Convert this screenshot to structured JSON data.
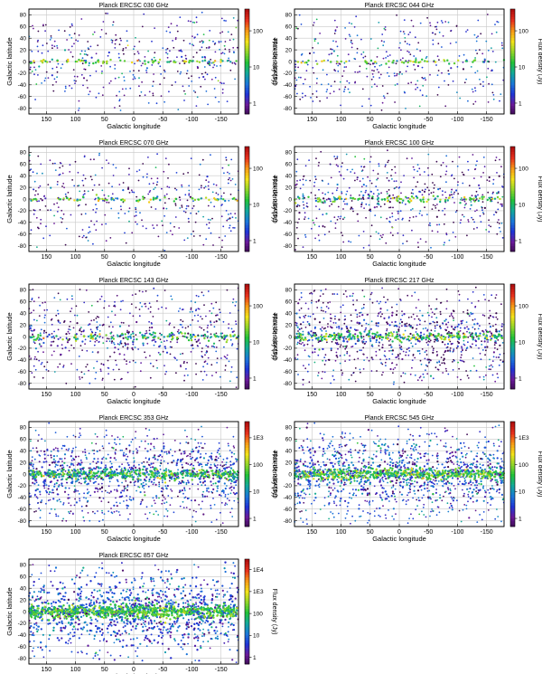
{
  "figure": {
    "xlabel": "Galactic longitude",
    "ylabel": "Galactic latitude",
    "colorbar_label": "Flux density (Jy)",
    "x_ticks": [
      150,
      100,
      50,
      0,
      -50,
      -100,
      -150
    ],
    "x_tick_labels": [
      "150",
      "100",
      "50",
      "0",
      "-50",
      "-100",
      "-150"
    ],
    "y_ticks": [
      80,
      60,
      40,
      20,
      0,
      -20,
      -40,
      -60,
      -80
    ],
    "y_tick_labels": [
      "80",
      "60",
      "40",
      "20",
      "0",
      "-20",
      "-40",
      "-60",
      "-80"
    ],
    "colors": [
      "#3a0a4e",
      "#6a1a9a",
      "#2035d6",
      "#1a78d8",
      "#12a89a",
      "#22c23a",
      "#8fd62a",
      "#f2e21a",
      "#f79a16",
      "#e8301c",
      "#b01010"
    ]
  },
  "chart_data": [
    {
      "type": "scatter",
      "title": "Planck ERCSC 030 GHz",
      "xlim": [
        180,
        -180
      ],
      "ylim": [
        -90,
        90
      ],
      "colorbar": {
        "scale": "log",
        "range": [
          0.5,
          400
        ],
        "ticks": [
          1,
          10,
          100
        ],
        "tick_labels": [
          "1",
          "10",
          "100"
        ]
      },
      "sources": {
        "count_estimate": 705,
        "density": 0.06,
        "plane_band": 0.7,
        "structure": "sparse",
        "flux_median": 1.5,
        "plane_flux": 20
      }
    },
    {
      "type": "scatter",
      "title": "Planck ERCSC 044 GHz",
      "xlim": [
        180,
        -180
      ],
      "ylim": [
        -90,
        90
      ],
      "colorbar": {
        "scale": "log",
        "range": [
          0.5,
          400
        ],
        "ticks": [
          1,
          10,
          100
        ],
        "tick_labels": [
          "1",
          "10",
          "100"
        ]
      },
      "sources": {
        "count_estimate": 452,
        "density": 0.04,
        "plane_band": 0.7,
        "structure": "sparse",
        "flux_median": 1.5,
        "plane_flux": 20
      }
    },
    {
      "type": "scatter",
      "title": "Planck ERCSC 070 GHz",
      "xlim": [
        180,
        -180
      ],
      "ylim": [
        -90,
        90
      ],
      "colorbar": {
        "scale": "log",
        "range": [
          0.5,
          400
        ],
        "ticks": [
          1,
          10,
          100
        ],
        "tick_labels": [
          "1",
          "10",
          "100"
        ]
      },
      "sources": {
        "count_estimate": 599,
        "density": 0.05,
        "plane_band": 0.75,
        "structure": "sparse",
        "flux_median": 1.3,
        "plane_flux": 18
      }
    },
    {
      "type": "scatter",
      "title": "Planck ERCSC 100 GHz",
      "xlim": [
        180,
        -180
      ],
      "ylim": [
        -90,
        90
      ],
      "colorbar": {
        "scale": "log",
        "range": [
          0.5,
          400
        ],
        "ticks": [
          1,
          10,
          100
        ],
        "tick_labels": [
          "1",
          "10",
          "100"
        ]
      },
      "sources": {
        "count_estimate": 1381,
        "density": 0.12,
        "plane_band": 1.0,
        "structure": "band",
        "flux_median": 1.2,
        "plane_flux": 15
      }
    },
    {
      "type": "scatter",
      "title": "Planck ERCSC 143 GHz",
      "xlim": [
        180,
        -180
      ],
      "ylim": [
        -90,
        90
      ],
      "colorbar": {
        "scale": "log",
        "range": [
          0.5,
          400
        ],
        "ticks": [
          1,
          10,
          100
        ],
        "tick_labels": [
          "1",
          "10",
          "100"
        ]
      },
      "sources": {
        "count_estimate": 1764,
        "density": 0.15,
        "plane_band": 1.3,
        "structure": "band",
        "flux_median": 1.0,
        "plane_flux": 12
      }
    },
    {
      "type": "scatter",
      "title": "Planck ERCSC 217 GHz",
      "xlim": [
        180,
        -180
      ],
      "ylim": [
        -90,
        90
      ],
      "colorbar": {
        "scale": "log",
        "range": [
          0.5,
          400
        ],
        "ticks": [
          1,
          10,
          100
        ],
        "tick_labels": [
          "1",
          "10",
          "100"
        ]
      },
      "sources": {
        "count_estimate": 8770,
        "density": 0.3,
        "plane_band": 1.0,
        "structure": "cloudy",
        "flux_median": 1.0,
        "plane_flux": 15
      }
    },
    {
      "type": "scatter",
      "title": "Planck ERCSC 353 GHz",
      "xlim": [
        180,
        -180
      ],
      "ylim": [
        -90,
        90
      ],
      "colorbar": {
        "scale": "log",
        "range": [
          0.5,
          4000
        ],
        "ticks": [
          1,
          10,
          100,
          1000
        ],
        "tick_labels": [
          "1",
          "10",
          "100",
          "1E3"
        ]
      },
      "sources": {
        "count_estimate": 4391,
        "density": 0.45,
        "plane_band": 1.0,
        "structure": "dense",
        "flux_median": 3,
        "plane_flux": 40
      }
    },
    {
      "type": "scatter",
      "title": "Planck ERCSC 545 GHz",
      "xlim": [
        180,
        -180
      ],
      "ylim": [
        -90,
        90
      ],
      "colorbar": {
        "scale": "log",
        "range": [
          0.5,
          4000
        ],
        "ticks": [
          1,
          10,
          100,
          1000
        ],
        "tick_labels": [
          "1",
          "10",
          "100",
          "1E3"
        ]
      },
      "sources": {
        "count_estimate": 6950,
        "density": 0.55,
        "plane_band": 1.0,
        "structure": "dense",
        "flux_median": 4,
        "plane_flux": 60
      }
    },
    {
      "type": "scatter",
      "title": "Planck ERCSC 857 GHz",
      "xlim": [
        180,
        -180
      ],
      "ylim": [
        -90,
        90
      ],
      "colorbar": {
        "scale": "log",
        "range": [
          0.5,
          30000
        ],
        "ticks": [
          1,
          10,
          100,
          1000,
          10000
        ],
        "tick_labels": [
          "1",
          "10",
          "100",
          "1E3",
          "1E4"
        ]
      },
      "sources": {
        "count_estimate": 10000,
        "density": 0.8,
        "plane_band": 1.0,
        "structure": "dense",
        "flux_median": 6,
        "plane_flux": 150
      }
    }
  ]
}
